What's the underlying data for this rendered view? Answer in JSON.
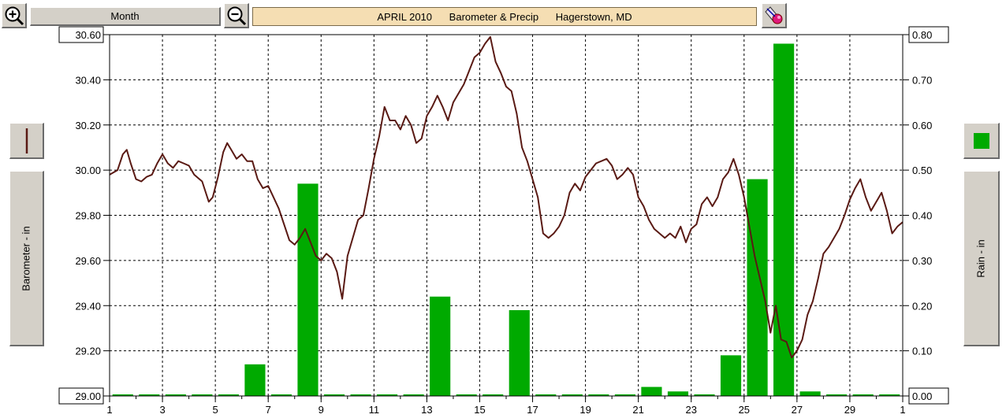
{
  "toolbar": {
    "period_label": "Month",
    "title": "APRIL 2010      Barometer & Precip      Hagerstown, MD",
    "zoom_in_icon": "zoom-in-icon",
    "zoom_out_icon": "zoom-out-icon",
    "settings_icon": "paint-palette-icon"
  },
  "left_panel": {
    "axis_title": "Barometer - in",
    "series_color": "#5a1a14"
  },
  "right_panel": {
    "axis_title": "Rain - in",
    "series_color": "#00aa00"
  },
  "chart_data": {
    "type": "bar+line",
    "x_ticks": [
      "1",
      "3",
      "5",
      "7",
      "9",
      "11",
      "13",
      "15",
      "17",
      "19",
      "21",
      "23",
      "25",
      "27",
      "29",
      "1"
    ],
    "x_range": [
      1,
      31
    ],
    "left_axis": {
      "label": "Barometer - in",
      "range": [
        29.0,
        30.6
      ],
      "ticks": [
        "29.00",
        "29.20",
        "29.40",
        "29.60",
        "29.80",
        "30.00",
        "30.20",
        "30.40",
        "30.60"
      ]
    },
    "right_axis": {
      "label": "Rain - in",
      "range": [
        0.0,
        0.8
      ],
      "ticks": [
        "0.00",
        "0.10",
        "0.20",
        "0.30",
        "0.40",
        "0.50",
        "0.60",
        "0.70",
        "0.80"
      ]
    },
    "grid": true,
    "rain": {
      "name": "Rain - in",
      "color": "#00aa00",
      "days": [
        1,
        2,
        3,
        4,
        5,
        6,
        7,
        8,
        9,
        10,
        11,
        12,
        13,
        14,
        15,
        16,
        17,
        18,
        19,
        20,
        21,
        22,
        23,
        24,
        25,
        26,
        27,
        28,
        29,
        30
      ],
      "values": [
        0,
        0,
        0,
        0,
        0,
        0.07,
        0,
        0.47,
        0,
        0,
        0,
        0,
        0.22,
        0,
        0,
        0.19,
        0,
        0,
        0,
        0,
        0.02,
        0.01,
        0,
        0.09,
        0.48,
        0.78,
        0.01,
        0,
        0,
        0
      ]
    },
    "barometer": {
      "name": "Barometer - in",
      "color": "#5a1a14",
      "points": [
        [
          1.0,
          29.98
        ],
        [
          1.3,
          30.0
        ],
        [
          1.5,
          30.07
        ],
        [
          1.65,
          30.09
        ],
        [
          1.8,
          30.03
        ],
        [
          2.0,
          29.96
        ],
        [
          2.2,
          29.95
        ],
        [
          2.4,
          29.97
        ],
        [
          2.6,
          29.98
        ],
        [
          2.8,
          30.03
        ],
        [
          3.0,
          30.07
        ],
        [
          3.2,
          30.03
        ],
        [
          3.4,
          30.01
        ],
        [
          3.6,
          30.04
        ],
        [
          3.8,
          30.03
        ],
        [
          4.0,
          30.02
        ],
        [
          4.2,
          29.98
        ],
        [
          4.5,
          29.95
        ],
        [
          4.75,
          29.86
        ],
        [
          4.9,
          29.88
        ],
        [
          5.1,
          29.97
        ],
        [
          5.3,
          30.08
        ],
        [
          5.45,
          30.12
        ],
        [
          5.6,
          30.09
        ],
        [
          5.8,
          30.05
        ],
        [
          6.0,
          30.07
        ],
        [
          6.2,
          30.04
        ],
        [
          6.4,
          30.04
        ],
        [
          6.6,
          29.96
        ],
        [
          6.8,
          29.92
        ],
        [
          7.0,
          29.93
        ],
        [
          7.2,
          29.88
        ],
        [
          7.4,
          29.83
        ],
        [
          7.6,
          29.76
        ],
        [
          7.8,
          29.69
        ],
        [
          8.0,
          29.67
        ],
        [
          8.2,
          29.7
        ],
        [
          8.4,
          29.74
        ],
        [
          8.6,
          29.68
        ],
        [
          8.8,
          29.62
        ],
        [
          9.0,
          29.6
        ],
        [
          9.2,
          29.63
        ],
        [
          9.4,
          29.61
        ],
        [
          9.6,
          29.55
        ],
        [
          9.8,
          29.43
        ],
        [
          10.0,
          29.62
        ],
        [
          10.2,
          29.7
        ],
        [
          10.4,
          29.78
        ],
        [
          10.6,
          29.8
        ],
        [
          10.8,
          29.92
        ],
        [
          11.0,
          30.05
        ],
        [
          11.2,
          30.15
        ],
        [
          11.4,
          30.28
        ],
        [
          11.6,
          30.22
        ],
        [
          11.8,
          30.22
        ],
        [
          12.0,
          30.18
        ],
        [
          12.2,
          30.24
        ],
        [
          12.4,
          30.2
        ],
        [
          12.6,
          30.12
        ],
        [
          12.8,
          30.14
        ],
        [
          13.0,
          30.24
        ],
        [
          13.2,
          30.28
        ],
        [
          13.4,
          30.33
        ],
        [
          13.6,
          30.28
        ],
        [
          13.8,
          30.22
        ],
        [
          14.0,
          30.3
        ],
        [
          14.2,
          30.34
        ],
        [
          14.4,
          30.38
        ],
        [
          14.6,
          30.44
        ],
        [
          14.8,
          30.5
        ],
        [
          15.0,
          30.52
        ],
        [
          15.2,
          30.56
        ],
        [
          15.4,
          30.59
        ],
        [
          15.6,
          30.48
        ],
        [
          15.8,
          30.43
        ],
        [
          16.0,
          30.37
        ],
        [
          16.2,
          30.35
        ],
        [
          16.4,
          30.25
        ],
        [
          16.6,
          30.1
        ],
        [
          16.8,
          30.04
        ],
        [
          17.0,
          29.96
        ],
        [
          17.2,
          29.88
        ],
        [
          17.4,
          29.72
        ],
        [
          17.6,
          29.7
        ],
        [
          17.8,
          29.72
        ],
        [
          18.0,
          29.75
        ],
        [
          18.2,
          29.8
        ],
        [
          18.4,
          29.9
        ],
        [
          18.6,
          29.94
        ],
        [
          18.8,
          29.91
        ],
        [
          19.0,
          29.97
        ],
        [
          19.2,
          30.0
        ],
        [
          19.4,
          30.03
        ],
        [
          19.6,
          30.04
        ],
        [
          19.8,
          30.05
        ],
        [
          20.0,
          30.02
        ],
        [
          20.2,
          29.96
        ],
        [
          20.4,
          29.98
        ],
        [
          20.6,
          30.01
        ],
        [
          20.8,
          29.98
        ],
        [
          21.0,
          29.88
        ],
        [
          21.2,
          29.84
        ],
        [
          21.4,
          29.78
        ],
        [
          21.6,
          29.74
        ],
        [
          21.8,
          29.72
        ],
        [
          22.0,
          29.7
        ],
        [
          22.2,
          29.72
        ],
        [
          22.4,
          29.7
        ],
        [
          22.6,
          29.75
        ],
        [
          22.8,
          29.68
        ],
        [
          23.0,
          29.74
        ],
        [
          23.2,
          29.76
        ],
        [
          23.4,
          29.85
        ],
        [
          23.6,
          29.88
        ],
        [
          23.8,
          29.84
        ],
        [
          24.0,
          29.88
        ],
        [
          24.2,
          29.96
        ],
        [
          24.4,
          29.99
        ],
        [
          24.6,
          30.05
        ],
        [
          24.8,
          29.98
        ],
        [
          25.0,
          29.88
        ],
        [
          25.2,
          29.75
        ],
        [
          25.4,
          29.62
        ],
        [
          25.6,
          29.52
        ],
        [
          25.8,
          29.42
        ],
        [
          26.0,
          29.28
        ],
        [
          26.2,
          29.4
        ],
        [
          26.4,
          29.25
        ],
        [
          26.6,
          29.24
        ],
        [
          26.8,
          29.17
        ],
        [
          27.0,
          29.2
        ],
        [
          27.2,
          29.25
        ],
        [
          27.4,
          29.36
        ],
        [
          27.6,
          29.42
        ],
        [
          27.8,
          29.52
        ],
        [
          28.0,
          29.63
        ],
        [
          28.2,
          29.66
        ],
        [
          28.4,
          29.7
        ],
        [
          28.6,
          29.74
        ],
        [
          28.8,
          29.8
        ],
        [
          29.0,
          29.87
        ],
        [
          29.2,
          29.92
        ],
        [
          29.4,
          29.96
        ],
        [
          29.6,
          29.88
        ],
        [
          29.8,
          29.82
        ],
        [
          30.0,
          29.86
        ],
        [
          30.2,
          29.9
        ],
        [
          30.4,
          29.82
        ],
        [
          30.6,
          29.72
        ],
        [
          30.8,
          29.75
        ],
        [
          31.0,
          29.77
        ]
      ]
    }
  }
}
